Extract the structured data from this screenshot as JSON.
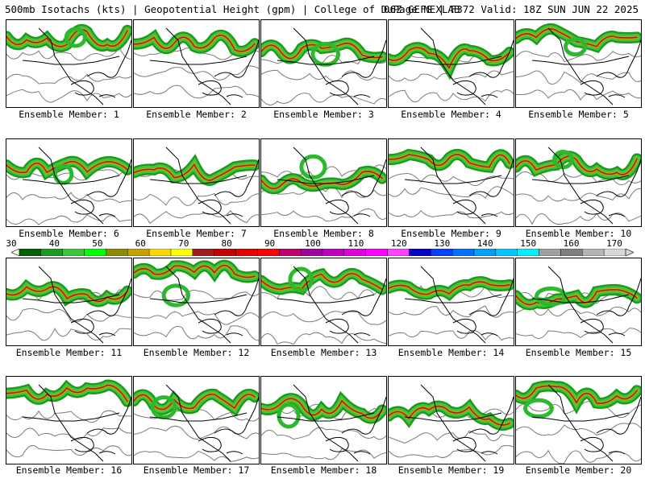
{
  "header": {
    "left": "500mb Isotachs (kts) | Geopotential Height (gpm) | College of DuPage NEXLAB",
    "right": "06Z GEFS | F372 Valid: 18Z SUN JUN 22 2025"
  },
  "members": [
    "Ensemble Member: 1",
    "Ensemble Member: 2",
    "Ensemble Member: 3",
    "Ensemble Member: 4",
    "Ensemble Member: 5",
    "Ensemble Member: 6",
    "Ensemble Member: 7",
    "Ensemble Member: 8",
    "Ensemble Member: 9",
    "Ensemble Member: 10",
    "Ensemble Member: 11",
    "Ensemble Member: 12",
    "Ensemble Member: 13",
    "Ensemble Member: 14",
    "Ensemble Member: 15",
    "Ensemble Member: 16",
    "Ensemble Member: 17",
    "Ensemble Member: 18",
    "Ensemble Member: 19",
    "Ensemble Member: 20"
  ],
  "colorbar": {
    "ticks": [
      "30",
      "40",
      "50",
      "60",
      "70",
      "80",
      "90",
      "100",
      "110",
      "120",
      "130",
      "140",
      "150",
      "160",
      "170"
    ],
    "colors": [
      "#006400",
      "#1e9b1e",
      "#3cc83c",
      "#00ff00",
      "#8c8c00",
      "#c8a000",
      "#ffd700",
      "#ffff00",
      "#a01e1e",
      "#c80000",
      "#e60000",
      "#ff0000",
      "#c0006e",
      "#a000a0",
      "#c000c0",
      "#e000e0",
      "#ff00ff",
      "#ff40ff",
      "#0000c8",
      "#0040ff",
      "#0070ff",
      "#00a0ff",
      "#00c8ff",
      "#00f0ff",
      "#a0a0a0",
      "#808080",
      "#b4b4b4",
      "#d8d8d8"
    ]
  }
}
